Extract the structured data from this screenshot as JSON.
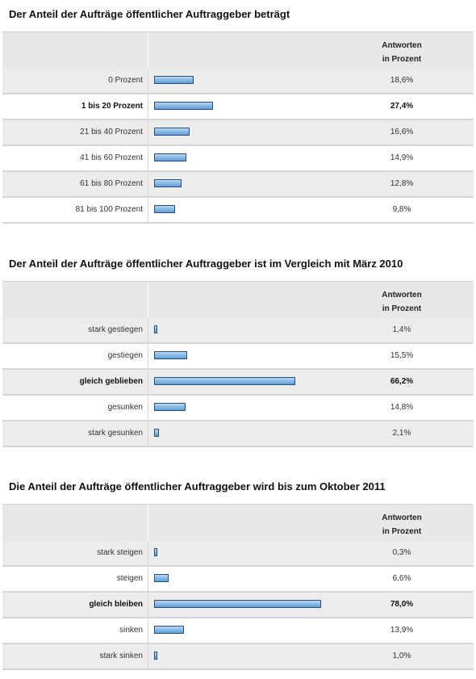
{
  "header_label_line1": "Antworten",
  "header_label_line2": "in Prozent",
  "bar_color": "#8cbde6",
  "bar_border_color": "#2a4f78",
  "chart_data": [
    {
      "type": "bar",
      "title": "Der Anteil der Aufträge öffentlicher Auftraggeber beträgt",
      "categories": [
        "0 Prozent",
        "1 bis 20 Prozent",
        "21 bis 40 Prozent",
        "41 bis 60 Prozent",
        "61 bis 80 Prozent",
        "81 bis 100 Prozent"
      ],
      "values": [
        18.6,
        27.4,
        16.6,
        14.9,
        12.8,
        9.8
      ],
      "value_labels": [
        "18,6%",
        "27,4%",
        "16,6%",
        "14,9%",
        "12,8%",
        "9,8%"
      ],
      "highlight_index": 1,
      "unit": "%"
    },
    {
      "type": "bar",
      "title": "Der Anteil der Aufträge öffentlicher Auftraggeber ist im Vergleich mit März 2010",
      "categories": [
        "stark gestiegen",
        "gestiegen",
        "gleich geblieben",
        "gesunken",
        "stark gesunken"
      ],
      "values": [
        1.4,
        15.5,
        66.2,
        14.8,
        2.1
      ],
      "value_labels": [
        "1,4%",
        "15,5%",
        "66,2%",
        "14,8%",
        "2,1%"
      ],
      "highlight_index": 2,
      "unit": "%"
    },
    {
      "type": "bar",
      "title": "Die Anteil der Aufträge öffentlicher Auftraggeber wird bis zum Oktober 2011",
      "categories": [
        "stark steigen",
        "steigen",
        "gleich bleiben",
        "sinken",
        "stark sinken"
      ],
      "values": [
        0.3,
        6.6,
        78.0,
        13.9,
        1.0
      ],
      "value_labels": [
        "0,3%",
        "6,6%",
        "78,0%",
        "13,9%",
        "1,0%"
      ],
      "highlight_index": 2,
      "unit": "%"
    }
  ]
}
